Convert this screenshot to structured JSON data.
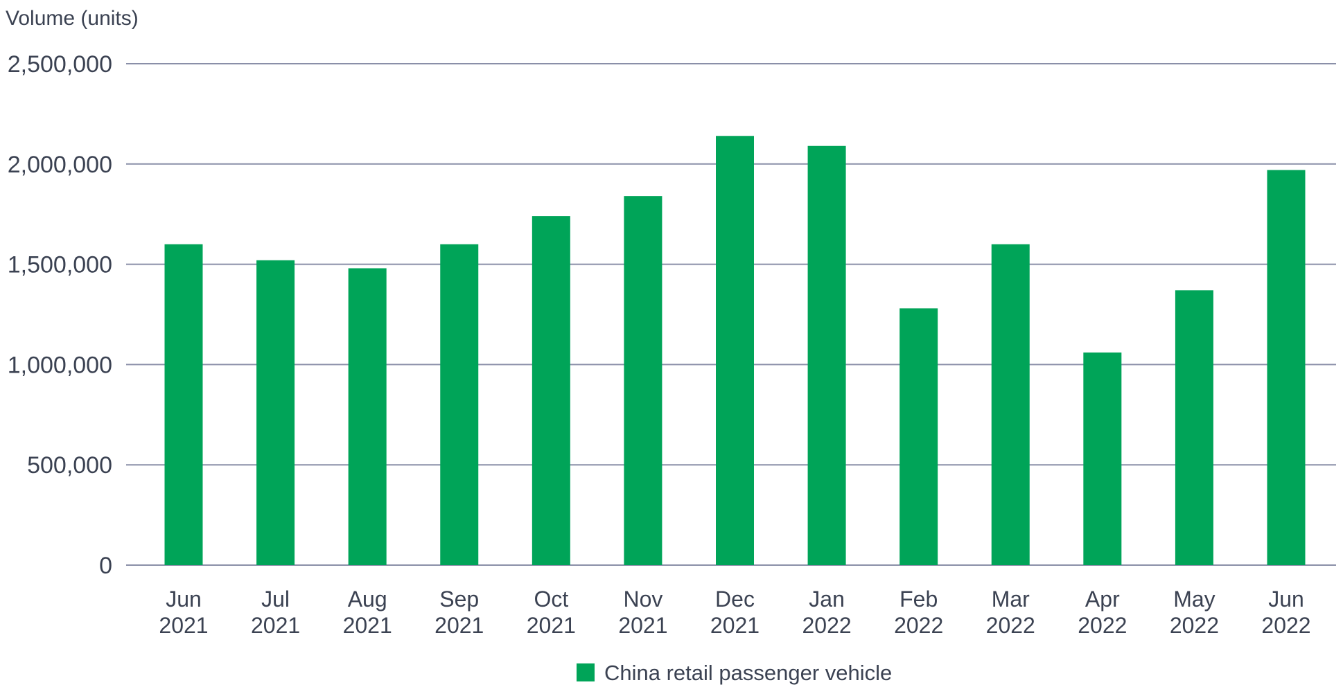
{
  "chart_data": {
    "type": "bar",
    "ylabel": "Volume (units)",
    "ylim": [
      0,
      2500000
    ],
    "yticks": [
      0,
      500000,
      1000000,
      1500000,
      2000000,
      2500000
    ],
    "ytick_labels": [
      "0",
      "500,000",
      "1,000,000",
      "1,500,000",
      "2,000,000",
      "2,500,000"
    ],
    "grid": true,
    "legend_position": "bottom-center",
    "categories": [
      [
        "Jun",
        "2021"
      ],
      [
        "Jul",
        "2021"
      ],
      [
        "Aug",
        "2021"
      ],
      [
        "Sep",
        "2021"
      ],
      [
        "Oct",
        "2021"
      ],
      [
        "Nov",
        "2021"
      ],
      [
        "Dec",
        "2021"
      ],
      [
        "Jan",
        "2022"
      ],
      [
        "Feb",
        "2022"
      ],
      [
        "Mar",
        "2022"
      ],
      [
        "Apr",
        "2022"
      ],
      [
        "May",
        "2022"
      ],
      [
        "Jun",
        "2022"
      ]
    ],
    "series": [
      {
        "name": "China retail passenger vehicle",
        "color": "#00a458",
        "values": [
          1600000,
          1520000,
          1480000,
          1600000,
          1740000,
          1840000,
          2140000,
          2090000,
          1280000,
          1600000,
          1060000,
          1370000,
          1970000
        ]
      }
    ],
    "colors": {
      "bar": "#00a458",
      "grid": "#8a8fa8",
      "text": "#3b4252",
      "baseline": "#8a8fa8"
    }
  }
}
